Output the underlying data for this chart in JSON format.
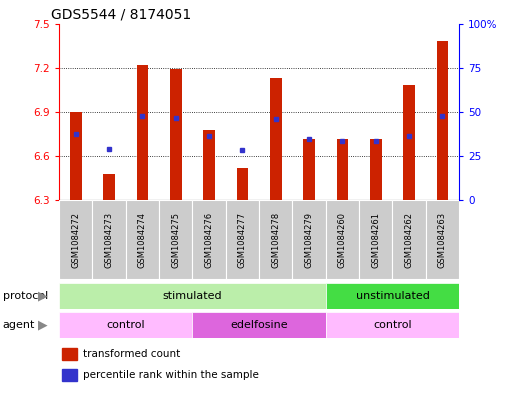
{
  "title": "GDS5544 / 8174051",
  "samples": [
    "GSM1084272",
    "GSM1084273",
    "GSM1084274",
    "GSM1084275",
    "GSM1084276",
    "GSM1084277",
    "GSM1084278",
    "GSM1084279",
    "GSM1084260",
    "GSM1084261",
    "GSM1084262",
    "GSM1084263"
  ],
  "bar_values": [
    6.9,
    6.48,
    7.22,
    7.19,
    6.78,
    6.52,
    7.13,
    6.72,
    6.72,
    6.72,
    7.08,
    7.38
  ],
  "bar_bottom": 6.3,
  "blue_values": [
    6.75,
    6.65,
    6.87,
    6.86,
    6.74,
    6.64,
    6.85,
    6.72,
    6.7,
    6.7,
    6.74,
    6.87
  ],
  "bar_color": "#cc2200",
  "blue_color": "#3333cc",
  "ylim": [
    6.3,
    7.5
  ],
  "yticks": [
    6.3,
    6.6,
    6.9,
    7.2,
    7.5
  ],
  "y2ticks": [
    0,
    25,
    50,
    75,
    100
  ],
  "y2tick_labels": [
    "0",
    "25",
    "50",
    "75",
    "100%"
  ],
  "grid_dotted_at": [
    6.6,
    6.9,
    7.2
  ],
  "protocol_stimulated_color": "#bbeeaa",
  "protocol_unstimulated_color": "#44dd44",
  "agent_control_color": "#ffbbff",
  "agent_edelfosine_color": "#dd66dd",
  "title_fontsize": 10,
  "tick_fontsize": 7.5,
  "sample_fontsize": 6,
  "label_fontsize": 8
}
